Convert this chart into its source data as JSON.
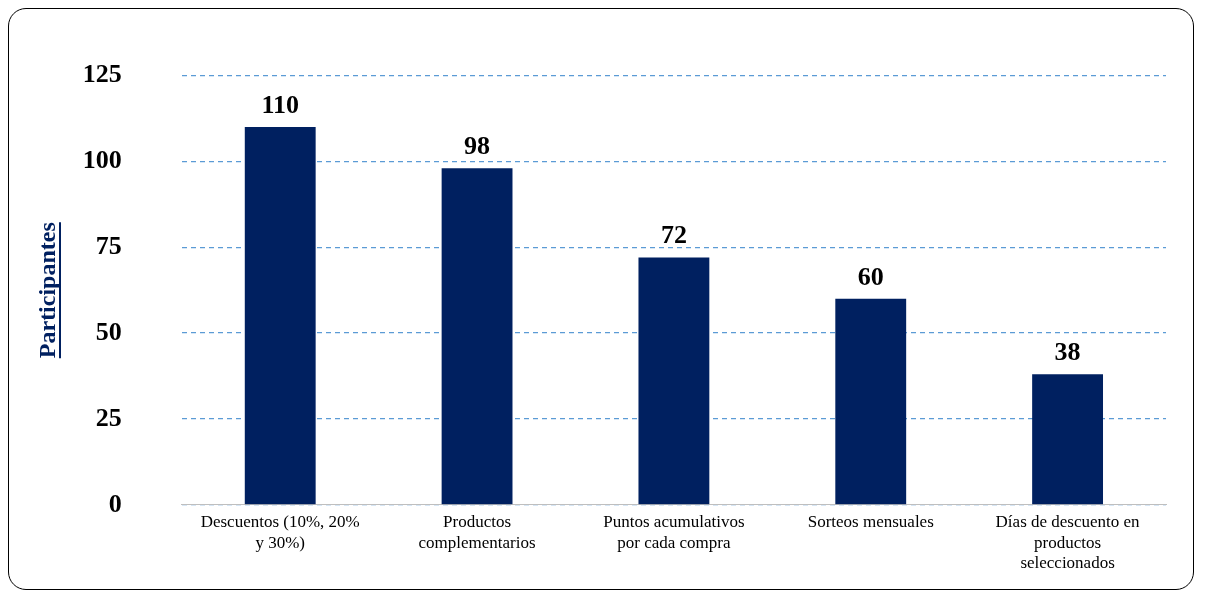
{
  "chart_data": {
    "type": "bar",
    "ylabel": "Participantes",
    "categories": [
      "Descuentos (10%, 20% y 30%)",
      "Productos complementarios",
      "Puntos acumulativos por cada compra",
      "Sorteos mensuales",
      "Días de descuento en productos seleccionados"
    ],
    "values": [
      110,
      98,
      72,
      60,
      38
    ],
    "color": "#002060",
    "ylim": [
      0,
      125
    ],
    "yticks": [
      0,
      25,
      50,
      75,
      100,
      125
    ],
    "grid": "y",
    "legend": false,
    "data_labels": true
  }
}
